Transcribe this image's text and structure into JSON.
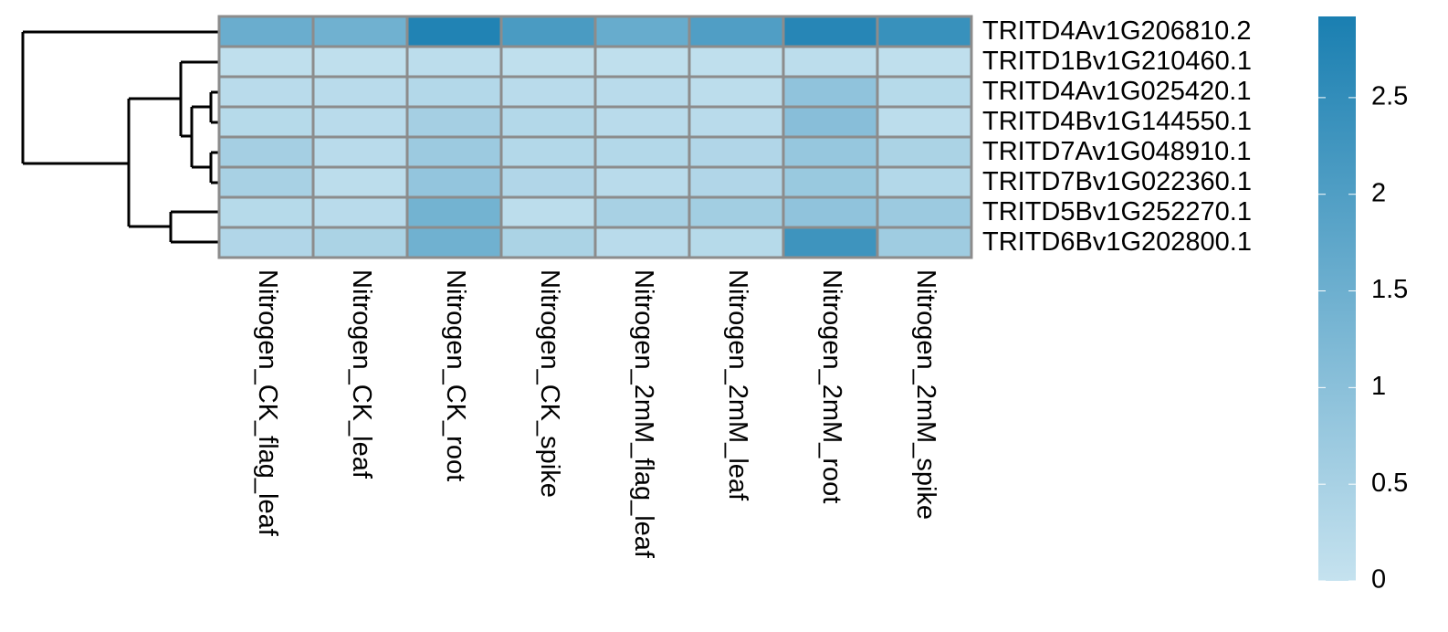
{
  "chart_data": {
    "type": "heatmap",
    "rows": [
      "TRITD4Av1G206810.2",
      "TRITD1Bv1G210460.1",
      "TRITD4Av1G025420.1",
      "TRITD4Bv1G144550.1",
      "TRITD7Av1G048910.1",
      "TRITD7Bv1G022360.1",
      "TRITD5Bv1G252270.1",
      "TRITD6Bv1G202800.1"
    ],
    "columns": [
      "Nitrogen_CK_flag_leaf",
      "Nitrogen_CK_leaf",
      "Nitrogen_CK_root",
      "Nitrogen_CK_spike",
      "Nitrogen_2mM_flag_leaf",
      "Nitrogen_2mM_leaf",
      "Nitrogen_2mM_root",
      "Nitrogen_2mM_spike"
    ],
    "values": [
      [
        1.55,
        1.45,
        2.8,
        2.1,
        1.6,
        2.0,
        2.7,
        2.4
      ],
      [
        0.1,
        0.1,
        0.15,
        0.1,
        0.1,
        0.1,
        0.15,
        0.1
      ],
      [
        0.2,
        0.2,
        0.3,
        0.2,
        0.2,
        0.15,
        0.9,
        0.25
      ],
      [
        0.25,
        0.2,
        0.55,
        0.3,
        0.2,
        0.2,
        1.05,
        0.15
      ],
      [
        0.55,
        0.2,
        0.7,
        0.3,
        0.3,
        0.35,
        0.8,
        0.45
      ],
      [
        0.5,
        0.15,
        0.85,
        0.35,
        0.2,
        0.35,
        0.75,
        0.3
      ],
      [
        0.25,
        0.2,
        1.4,
        0.15,
        0.5,
        0.6,
        0.9,
        0.7
      ],
      [
        0.35,
        0.45,
        1.45,
        0.45,
        0.2,
        0.25,
        2.3,
        0.65
      ]
    ],
    "colorbar_lim": [
      0,
      2.92
    ],
    "colorbar_ticks": [
      0,
      0.5,
      1,
      1.5,
      2,
      2.5
    ],
    "color_low": "#c5e2ef",
    "color_high": "#1a7fb1",
    "cell_border": "#8c8c8c"
  }
}
